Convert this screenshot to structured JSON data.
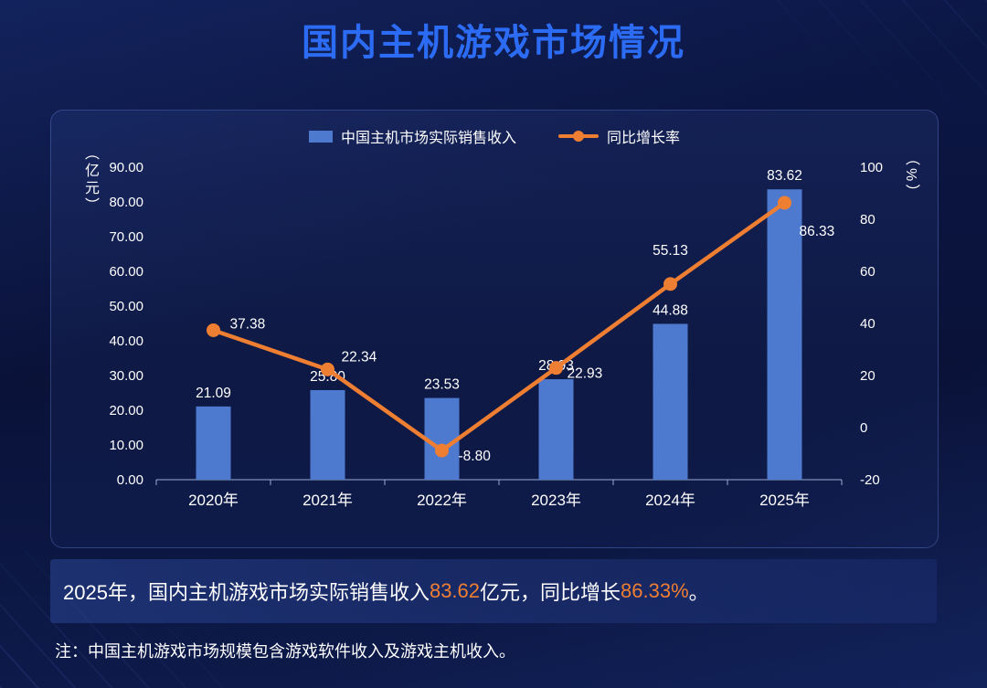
{
  "title": "国内主机游戏市场情况",
  "chart_data": {
    "type": "bar+line",
    "title": "国内主机游戏市场情况",
    "categories": [
      "2020年",
      "2021年",
      "2022年",
      "2023年",
      "2024年",
      "2025年"
    ],
    "series": [
      {
        "name": "中国主机市场实际销售收入",
        "type": "bar",
        "axis": "left",
        "color": "#4d7ace",
        "values": [
          21.09,
          25.8,
          23.53,
          28.93,
          44.88,
          83.62
        ]
      },
      {
        "name": "同比增长率",
        "type": "line",
        "axis": "right",
        "color": "#ee7e32",
        "values": [
          37.38,
          22.34,
          -8.8,
          22.93,
          55.13,
          86.33
        ]
      }
    ],
    "left_axis": {
      "unit": "（亿元）",
      "min": 0,
      "max": 90,
      "step": 10,
      "tick_decimals": 2
    },
    "right_axis": {
      "unit": "（%）",
      "min": -20,
      "max": 100,
      "step": 20,
      "tick_decimals": 0
    },
    "legend_position": "top",
    "grid": false
  },
  "summary": {
    "part1": "2025年，国内主机游戏市场实际销售收入",
    "part2": "83.62",
    "part3": "亿元，同比增长",
    "part4": "86.33%",
    "part5": "。"
  },
  "note": "注：中国主机游戏市场规模包含游戏软件收入及游戏主机收入。"
}
